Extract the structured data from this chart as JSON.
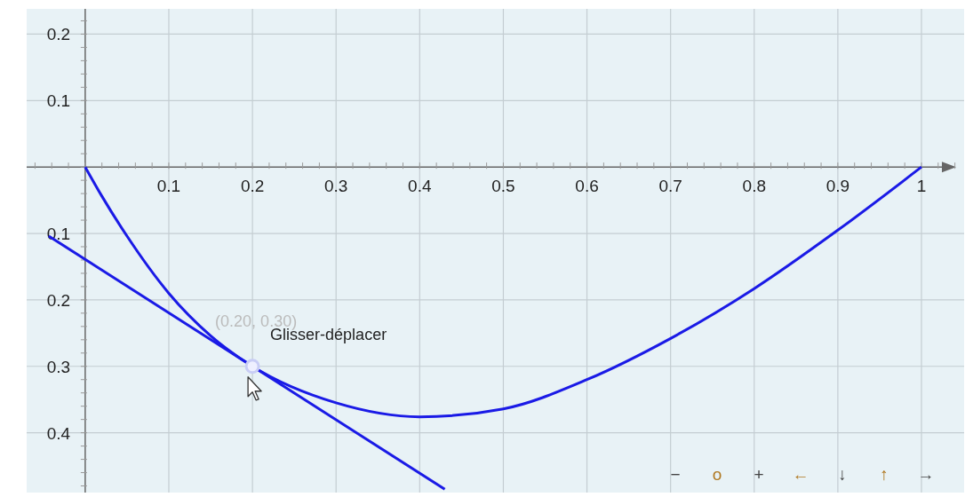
{
  "chart_data": {
    "type": "line",
    "xlim": [
      -0.07,
      1.051
    ],
    "ylim": [
      -0.49,
      0.238
    ],
    "xticks": [
      0.1,
      0.2,
      0.3,
      0.4,
      0.5,
      0.6,
      0.7,
      0.8,
      0.9,
      1
    ],
    "yticks": [
      0.2,
      0.1,
      {
        "value": -0.1,
        "label": "0.1"
      },
      {
        "value": -0.2,
        "label": "0.2"
      },
      {
        "value": -0.3,
        "label": "0.3"
      },
      {
        "value": -0.4,
        "label": "0.4"
      }
    ],
    "grid": true,
    "marker": "none",
    "line_style": "solid",
    "series": [
      {
        "color": "#1a1ae6",
        "x": [
          0,
          0.02,
          0.05,
          0.1,
          0.15,
          0.2,
          0.3,
          0.4,
          0.5,
          0.6,
          0.7,
          0.8,
          0.9,
          1
        ],
        "values": [
          0,
          -0.044,
          -0.104,
          -0.19,
          -0.254,
          -0.3,
          -0.355,
          -0.376,
          -0.364,
          -0.32,
          -0.258,
          -0.183,
          -0.095,
          0
        ]
      },
      {
        "color": "#1a1ae6",
        "x": [
          -0.0436,
          0.43
        ],
        "values": [
          -0.104,
          -0.485
        ]
      },
      {
        "type": "scatter",
        "color": "#c8cdf5",
        "x": [
          0.2
        ],
        "values": [
          -0.3
        ],
        "marker": "circle"
      }
    ],
    "annotations": [
      {
        "text": "(0.20, 0.30)",
        "x": 0.2,
        "y": -0.3
      },
      "Glisser-déplacer",
      "−",
      "o",
      "+",
      "←",
      "↓",
      "↑",
      "→"
    ]
  }
}
